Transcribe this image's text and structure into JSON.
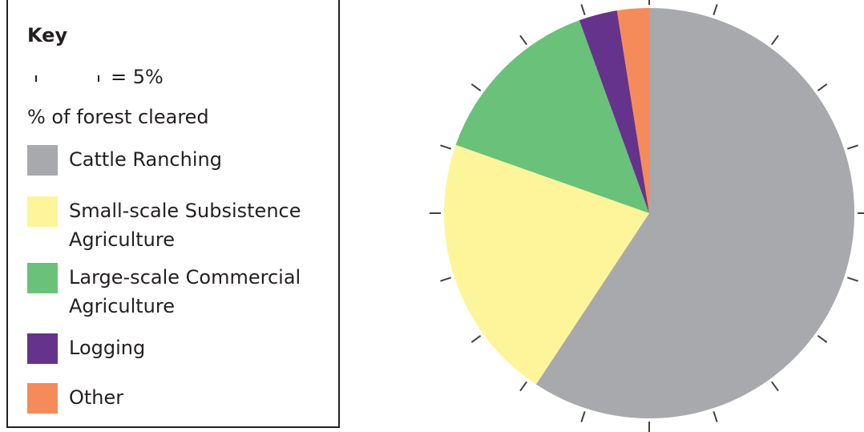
{
  "key": {
    "title": "Key",
    "scale_text": "= 5%",
    "subtitle": "% of forest cleared"
  },
  "chart_data": {
    "type": "pie",
    "tick_interval_percent": 5,
    "slices": [
      {
        "label": "Cattle Ranching",
        "value": 59,
        "color": "#a7a9ac"
      },
      {
        "label": "Small-scale Subsistence\nAgriculture",
        "value": 21,
        "color": "#fef59a"
      },
      {
        "label": "Large-scale Commercial\nAgriculture",
        "value": 14,
        "color": "#69c17a"
      },
      {
        "label": "Logging",
        "value": 3,
        "color": "#65338b"
      },
      {
        "label": "Other",
        "value": 2.5,
        "color": "#f58a5b"
      }
    ]
  }
}
